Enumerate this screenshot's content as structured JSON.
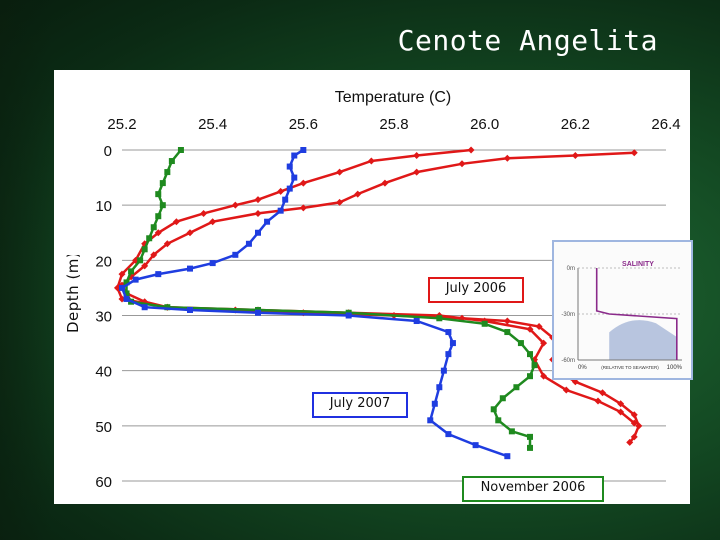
{
  "slide": {
    "title": "Cenote Angelita",
    "labels": {
      "july2006": "July 2006",
      "july2007": "July 2007",
      "nov2006": "November 2006"
    }
  },
  "inset": {
    "title": "SALINITY",
    "depth_ticks": [
      "0m",
      "-30m",
      "-60m"
    ],
    "x_min_label": "0%",
    "x_max_label": "100%",
    "x_caption": "(RELATIVE TO SEAWATER)",
    "profile": [
      [
        0.18,
        0
      ],
      [
        0.18,
        28
      ],
      [
        0.3,
        30
      ],
      [
        0.95,
        33
      ],
      [
        0.95,
        60
      ]
    ],
    "colors": {
      "line": "#8a2a8a",
      "water": "#a8b8d8"
    }
  },
  "chart_data": {
    "type": "line",
    "title": "Temperature (C)",
    "xlabel": "",
    "ylabel": "Depth (m)",
    "x_ticks": [
      "25.2",
      "25.4",
      "25.6",
      "25.8",
      "26.0",
      "26.2",
      "26.4"
    ],
    "y_ticks": [
      "0",
      "10",
      "20",
      "30",
      "40",
      "50",
      "60"
    ],
    "xlim": [
      25.2,
      26.4
    ],
    "ylim": [
      0,
      60
    ],
    "x_axis_position": "top",
    "y_reversed": true,
    "grid": "horizontal",
    "series": [
      {
        "color": "#e01818",
        "marker": "diamond",
        "points": [
          [
            26.33,
            0.5
          ],
          [
            26.2,
            1
          ],
          [
            26.05,
            1.5
          ],
          [
            25.95,
            2.5
          ],
          [
            25.85,
            4
          ],
          [
            25.78,
            6
          ],
          [
            25.72,
            8
          ],
          [
            25.68,
            9.5
          ],
          [
            25.6,
            10.5
          ],
          [
            25.5,
            11.5
          ],
          [
            25.4,
            13
          ],
          [
            25.35,
            15
          ],
          [
            25.3,
            17
          ],
          [
            25.27,
            19
          ],
          [
            25.25,
            21
          ],
          [
            25.22,
            23
          ],
          [
            25.2,
            24.5
          ],
          [
            25.21,
            26
          ],
          [
            25.25,
            27.5
          ],
          [
            25.3,
            28.5
          ],
          [
            25.45,
            29
          ],
          [
            25.6,
            29.5
          ],
          [
            25.8,
            30
          ],
          [
            25.95,
            30.5
          ],
          [
            26.05,
            31
          ],
          [
            26.12,
            32
          ],
          [
            26.15,
            34
          ],
          [
            26.17,
            36
          ],
          [
            26.15,
            38
          ],
          [
            26.16,
            40
          ],
          [
            26.2,
            42
          ],
          [
            26.26,
            44
          ],
          [
            26.3,
            46
          ],
          [
            26.33,
            48
          ],
          [
            26.34,
            50
          ],
          [
            26.33,
            52
          ],
          [
            26.32,
            53
          ]
        ]
      },
      {
        "color": "#e01818",
        "marker": "diamond",
        "points": [
          [
            25.97,
            0
          ],
          [
            25.85,
            1
          ],
          [
            25.75,
            2
          ],
          [
            25.68,
            4
          ],
          [
            25.6,
            6
          ],
          [
            25.55,
            7.5
          ],
          [
            25.5,
            9
          ],
          [
            25.45,
            10
          ],
          [
            25.38,
            11.5
          ],
          [
            25.32,
            13
          ],
          [
            25.28,
            15
          ],
          [
            25.25,
            17
          ],
          [
            25.23,
            20
          ],
          [
            25.2,
            22.5
          ],
          [
            25.19,
            25
          ],
          [
            25.2,
            27
          ],
          [
            25.3,
            28.5
          ],
          [
            25.5,
            29
          ],
          [
            25.7,
            29.5
          ],
          [
            25.9,
            30
          ],
          [
            26.0,
            31
          ],
          [
            26.1,
            32.5
          ],
          [
            26.13,
            35
          ],
          [
            26.11,
            38
          ],
          [
            26.13,
            41
          ],
          [
            26.18,
            43.5
          ],
          [
            26.25,
            45.5
          ],
          [
            26.3,
            47.5
          ],
          [
            26.33,
            49.5
          ]
        ]
      },
      {
        "color": "#1f8a1f",
        "marker": "square",
        "points": [
          [
            25.33,
            0
          ],
          [
            25.31,
            2
          ],
          [
            25.3,
            4
          ],
          [
            25.29,
            6
          ],
          [
            25.28,
            8
          ],
          [
            25.29,
            10
          ],
          [
            25.28,
            12
          ],
          [
            25.27,
            14
          ],
          [
            25.26,
            16
          ],
          [
            25.25,
            18
          ],
          [
            25.24,
            20
          ],
          [
            25.22,
            22
          ],
          [
            25.21,
            24
          ],
          [
            25.21,
            26
          ],
          [
            25.22,
            27.5
          ],
          [
            25.3,
            28.5
          ],
          [
            25.5,
            29
          ],
          [
            25.7,
            29.5
          ],
          [
            25.9,
            30.5
          ],
          [
            26.0,
            31.5
          ],
          [
            26.05,
            33
          ],
          [
            26.08,
            35
          ],
          [
            26.1,
            37
          ],
          [
            26.11,
            39
          ],
          [
            26.1,
            41
          ],
          [
            26.07,
            43
          ],
          [
            26.04,
            45
          ],
          [
            26.02,
            47
          ],
          [
            26.03,
            49
          ],
          [
            26.06,
            51
          ],
          [
            26.1,
            52
          ],
          [
            26.1,
            54
          ]
        ]
      },
      {
        "color": "#1f3de0",
        "marker": "square",
        "points": [
          [
            25.6,
            0
          ],
          [
            25.58,
            1
          ],
          [
            25.57,
            3
          ],
          [
            25.58,
            5
          ],
          [
            25.57,
            7
          ],
          [
            25.56,
            9
          ],
          [
            25.55,
            11
          ],
          [
            25.52,
            13
          ],
          [
            25.5,
            15
          ],
          [
            25.48,
            17
          ],
          [
            25.45,
            19
          ],
          [
            25.4,
            20.5
          ],
          [
            25.35,
            21.5
          ],
          [
            25.28,
            22.5
          ],
          [
            25.23,
            23.5
          ],
          [
            25.2,
            25
          ],
          [
            25.21,
            27
          ],
          [
            25.25,
            28.5
          ],
          [
            25.35,
            29
          ],
          [
            25.5,
            29.5
          ],
          [
            25.7,
            30
          ],
          [
            25.85,
            31
          ],
          [
            25.92,
            33
          ],
          [
            25.93,
            35
          ],
          [
            25.92,
            37
          ],
          [
            25.91,
            40
          ],
          [
            25.9,
            43
          ],
          [
            25.89,
            46
          ],
          [
            25.88,
            49
          ],
          [
            25.92,
            51.5
          ],
          [
            25.98,
            53.5
          ],
          [
            26.05,
            55.5
          ]
        ]
      }
    ]
  }
}
